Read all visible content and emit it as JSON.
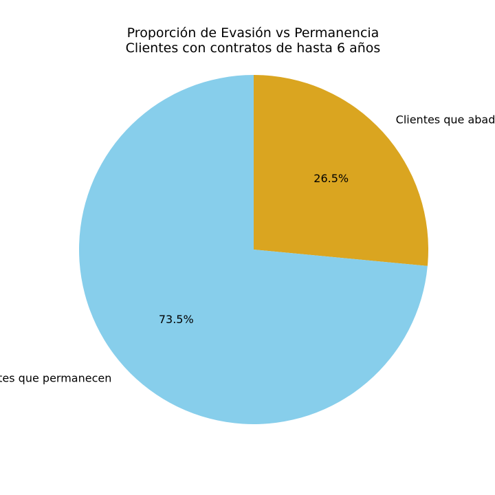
{
  "chart_data": {
    "type": "pie",
    "title": "Proporción de Evasión vs Permanencia",
    "subtitle": "Clientes con contratos de hasta 6 años",
    "categories": [
      "Clientes que abadonan",
      "Clientes que permanecen"
    ],
    "values": [
      26.5,
      73.5
    ],
    "labels": [
      "26.5%",
      "73.5%"
    ],
    "colors": [
      "#DAA520",
      "#87CEEB"
    ],
    "start_angle": 90,
    "direction": "clockwise"
  }
}
